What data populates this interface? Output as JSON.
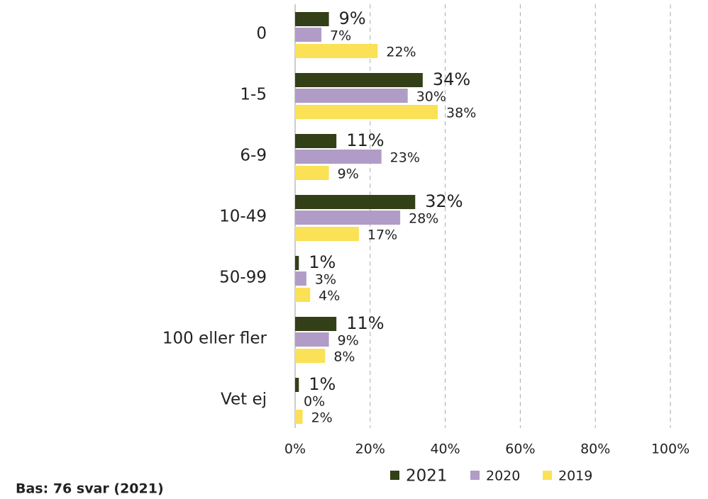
{
  "chart_data": {
    "type": "hbar",
    "categories": [
      "0",
      "1-5",
      "6-9",
      "10-49",
      "50-99",
      "100 eller fler",
      "Vet ej"
    ],
    "series": [
      {
        "name": "2021",
        "color": "#333f17",
        "values": [
          9,
          34,
          11,
          32,
          1,
          11,
          1
        ],
        "value_labels": [
          "9%",
          "34%",
          "11%",
          "32%",
          "1%",
          "11%",
          "1%"
        ]
      },
      {
        "name": "2020",
        "color": "#b09cc6",
        "values": [
          7,
          30,
          23,
          28,
          3,
          9,
          0
        ],
        "value_labels": [
          "7%",
          "30%",
          "23%",
          "28%",
          "3%",
          "9%",
          "0%"
        ]
      },
      {
        "name": "2019",
        "color": "#fae155",
        "values": [
          22,
          38,
          9,
          17,
          4,
          8,
          2
        ],
        "value_labels": [
          "22%",
          "38%",
          "9%",
          "17%",
          "4%",
          "8%",
          "2%"
        ]
      }
    ],
    "xlim": [
      0,
      100
    ],
    "xticks": [
      {
        "value": 0,
        "label": "0%"
      },
      {
        "value": 20,
        "label": "20%"
      },
      {
        "value": 40,
        "label": "40%"
      },
      {
        "value": 60,
        "label": "60%"
      },
      {
        "value": 80,
        "label": "80%"
      },
      {
        "value": 100,
        "label": "100%"
      }
    ],
    "grid": true,
    "legend": "bottom",
    "footnote": "Bas: 76 svar (2021)"
  }
}
